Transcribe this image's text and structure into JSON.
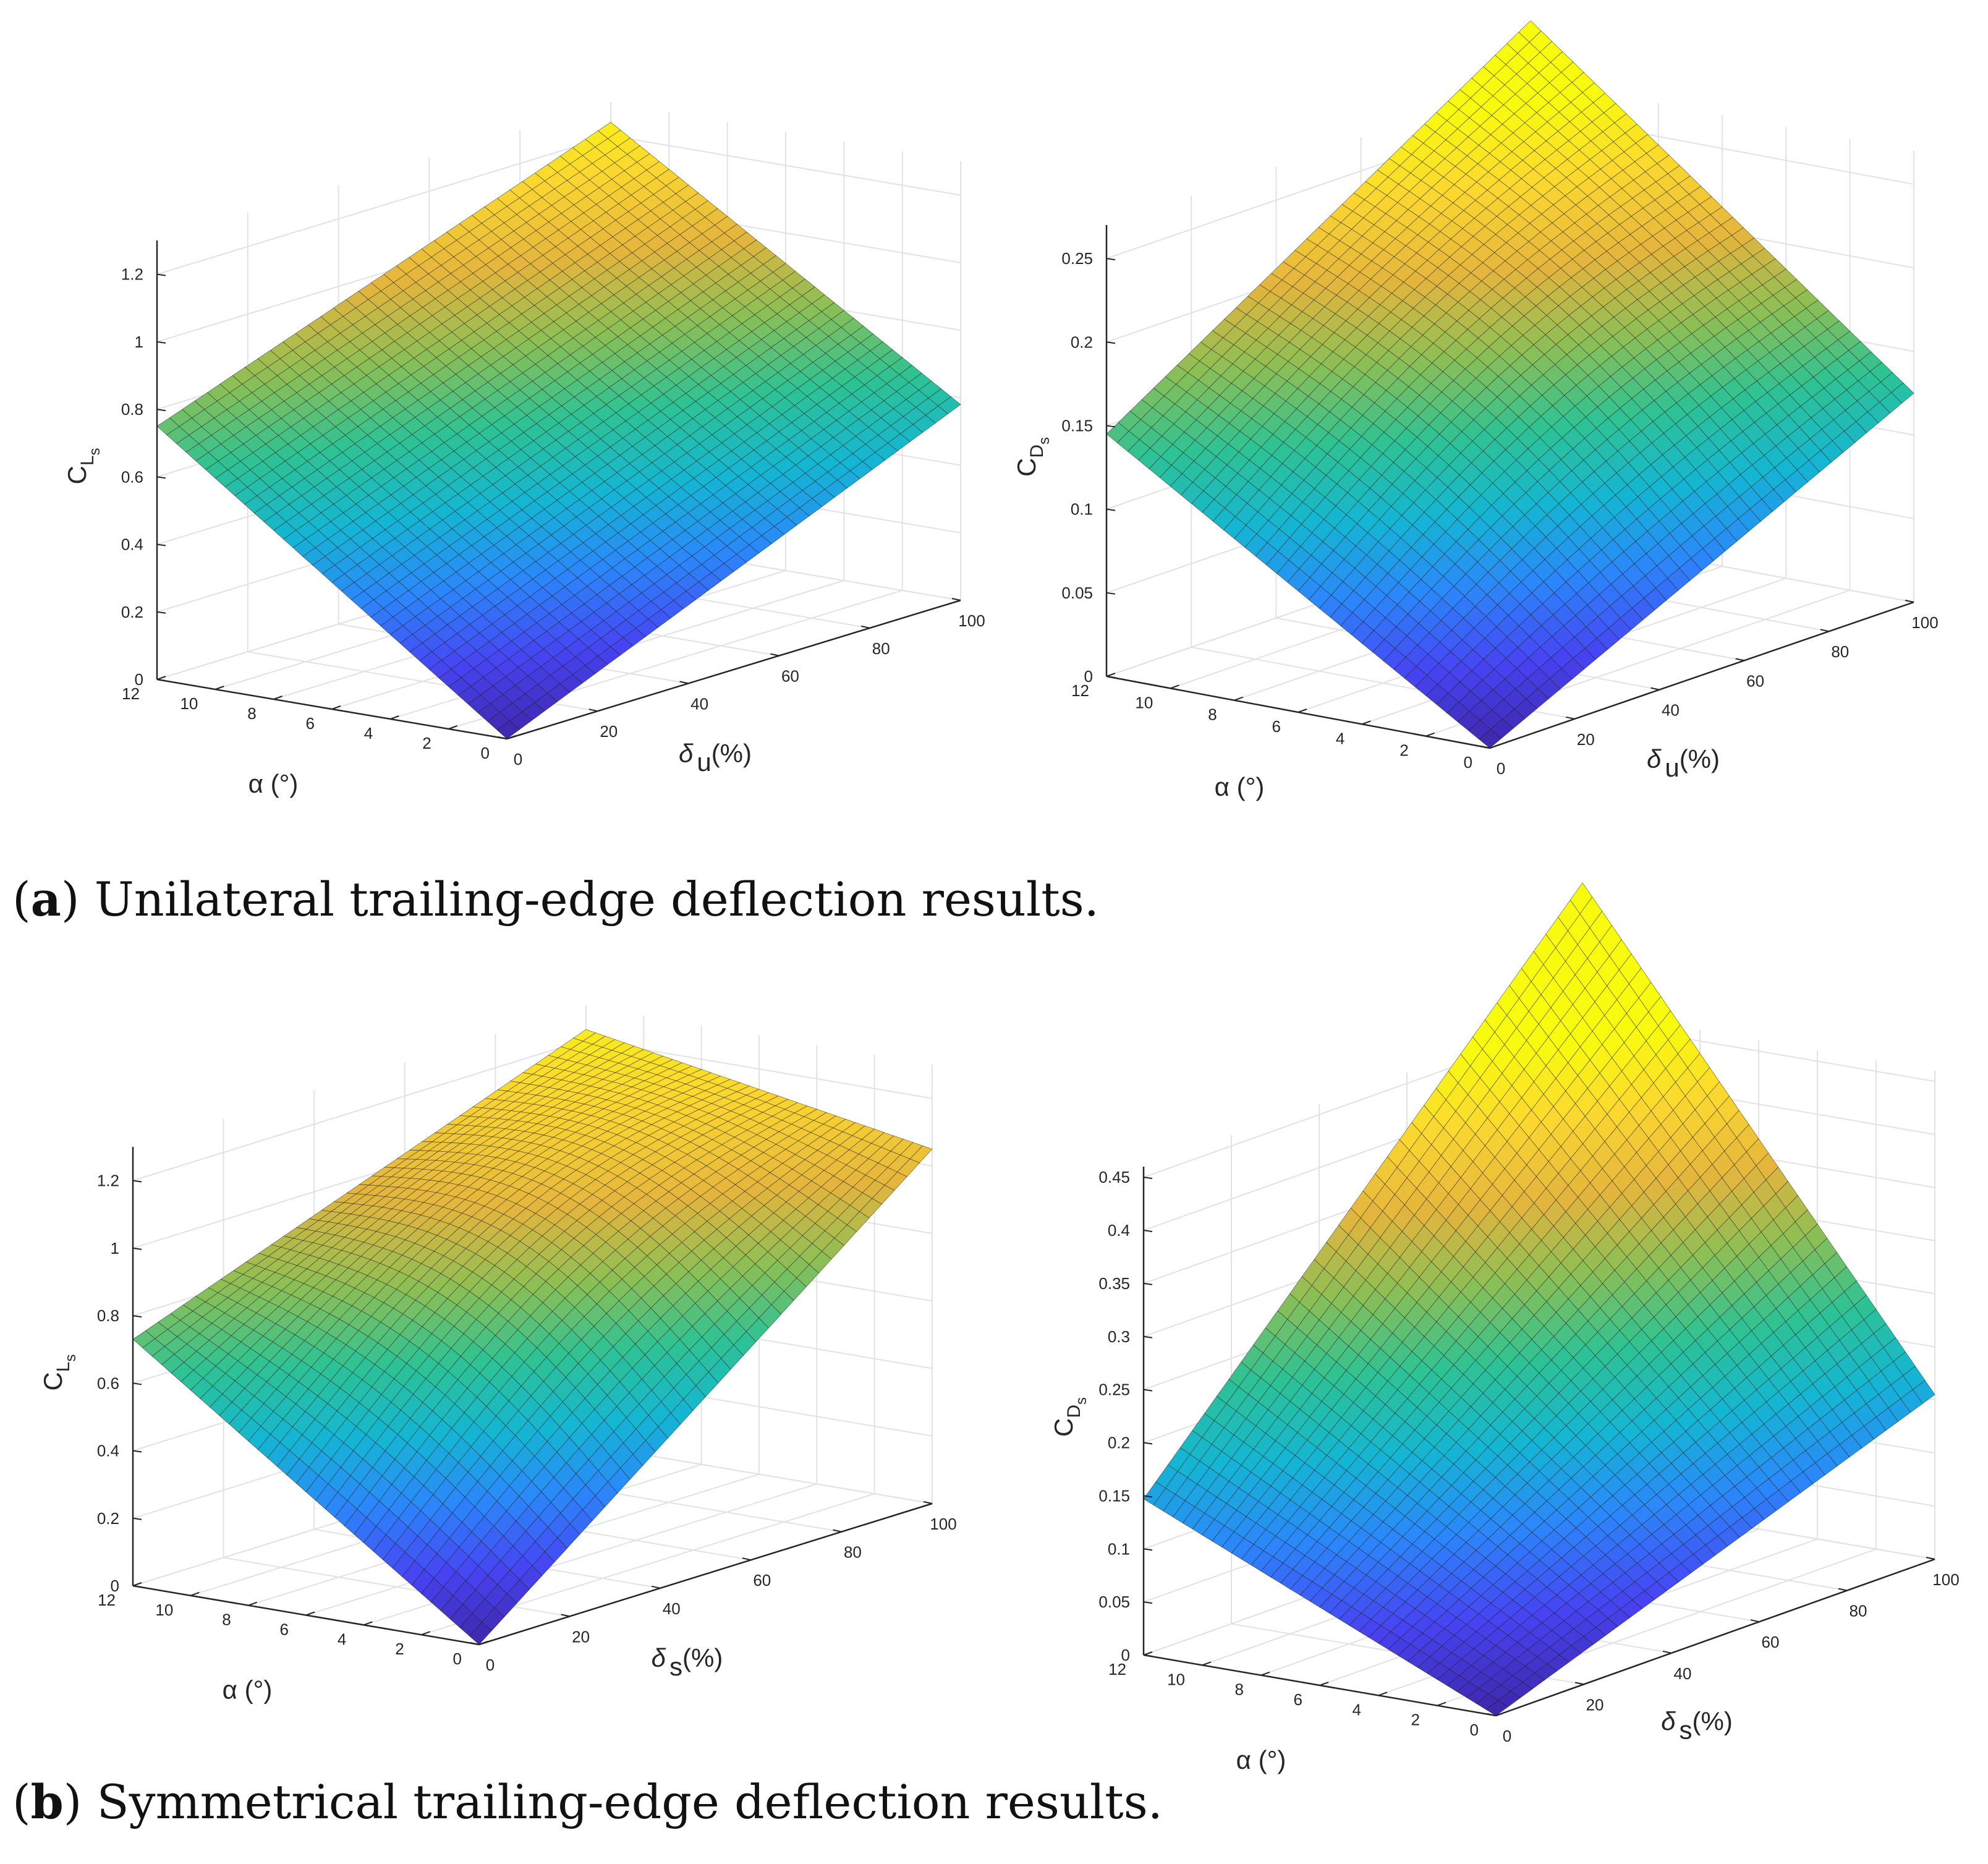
{
  "figure": {
    "panels": [
      {
        "letter": "a",
        "caption": "Unilateral trailing-edge deflection results.",
        "plots": [
          "unilateral-cl",
          "unilateral-cd"
        ]
      },
      {
        "letter": "b",
        "caption": "Symmetrical trailing-edge deflection results.",
        "plots": [
          "symmetric-cl",
          "symmetric-cd"
        ]
      }
    ]
  },
  "colors": {
    "colormap": [
      "#3e26a8",
      "#4743f2",
      "#2c86fb",
      "#14b6d3",
      "#2ec294",
      "#8bbf56",
      "#e4b53d",
      "#fbd730",
      "#f9fb0e"
    ],
    "grid": "#e2e2e2",
    "axis": "#262626",
    "mesh": "#1a1a1a"
  },
  "chart_data": [
    {
      "id": "unilateral-cl",
      "type": "surface",
      "zlabel_main": "C",
      "zlabel_sub1": "L",
      "zlabel_sub2": "s",
      "xlabel": "α (°)",
      "ylabel_main": "δ",
      "ylabel_sub": "u",
      "ylabel_tail": "(%)",
      "x_ticks": [
        "0",
        "2",
        "4",
        "6",
        "8",
        "10",
        "12"
      ],
      "y_ticks": [
        "0",
        "20",
        "40",
        "60",
        "80",
        "100"
      ],
      "z_ticks": [
        "0",
        "0.2",
        "0.4",
        "0.6",
        "0.8",
        "1",
        "1.2"
      ],
      "xlim": [
        0,
        12
      ],
      "ylim": [
        0,
        100
      ],
      "zlim": [
        0,
        1.3
      ],
      "corner_values": {
        "alpha0_delta0": 0.0,
        "alpha12_delta0": 0.75,
        "alpha0_delta100": 0.58,
        "alpha12_delta100": 1.24
      },
      "interior_bump": 0.0
    },
    {
      "id": "unilateral-cd",
      "type": "surface",
      "zlabel_main": "C",
      "zlabel_sub1": "D",
      "zlabel_sub2": "s",
      "xlabel": "α (°)",
      "ylabel_main": "δ",
      "ylabel_sub": "u",
      "ylabel_tail": "(%)",
      "x_ticks": [
        "0",
        "2",
        "4",
        "6",
        "8",
        "10",
        "12"
      ],
      "y_ticks": [
        "0",
        "20",
        "40",
        "60",
        "80",
        "100"
      ],
      "z_ticks": [
        "0",
        "0.05",
        "0.1",
        "0.15",
        "0.2",
        "0.25"
      ],
      "xlim": [
        0,
        12
      ],
      "ylim": [
        0,
        100
      ],
      "zlim": [
        0,
        0.27
      ],
      "corner_values": {
        "alpha0_delta0": 0.0,
        "alpha12_delta0": 0.145,
        "alpha0_delta100": 0.125,
        "alpha12_delta100": 0.305
      },
      "interior_bump": 0.02
    },
    {
      "id": "symmetric-cl",
      "type": "surface",
      "zlabel_main": "C",
      "zlabel_sub1": "L",
      "zlabel_sub2": "s",
      "xlabel": "α (°)",
      "ylabel_main": "δ",
      "ylabel_sub": "s",
      "ylabel_tail": "(%)",
      "x_ticks": [
        "0",
        "2",
        "4",
        "6",
        "8",
        "10",
        "12"
      ],
      "y_ticks": [
        "0",
        "20",
        "40",
        "60",
        "80",
        "100"
      ],
      "z_ticks": [
        "0",
        "0.2",
        "0.4",
        "0.6",
        "0.8",
        "1",
        "1.2"
      ],
      "xlim": [
        0,
        12
      ],
      "ylim": [
        0,
        100
      ],
      "zlim": [
        0,
        1.3
      ],
      "corner_values": {
        "alpha0_delta0": 0.0,
        "alpha12_delta0": 0.73,
        "alpha0_delta100": 1.05,
        "alpha12_delta100": 1.23
      },
      "interior_bump": 0.18
    },
    {
      "id": "symmetric-cd",
      "type": "surface",
      "zlabel_main": "C",
      "zlabel_sub1": "D",
      "zlabel_sub2": "s",
      "xlabel": "α (°)",
      "ylabel_main": "δ",
      "ylabel_sub": "s",
      "ylabel_tail": "(%)",
      "x_ticks": [
        "0",
        "2",
        "4",
        "6",
        "8",
        "10",
        "12"
      ],
      "y_ticks": [
        "0",
        "20",
        "40",
        "60",
        "80",
        "100"
      ],
      "z_ticks": [
        "0",
        "0.05",
        "0.1",
        "0.15",
        "0.2",
        "0.25",
        "0.3",
        "0.35",
        "0.4",
        "0.45"
      ],
      "xlim": [
        0,
        12
      ],
      "ylim": [
        0,
        100
      ],
      "zlim": [
        0,
        0.46
      ],
      "corner_values": {
        "alpha0_delta0": 0.0,
        "alpha12_delta0": 0.147,
        "alpha0_delta100": 0.155,
        "alpha12_delta100": 0.58
      },
      "interior_bump": 0.0
    }
  ]
}
